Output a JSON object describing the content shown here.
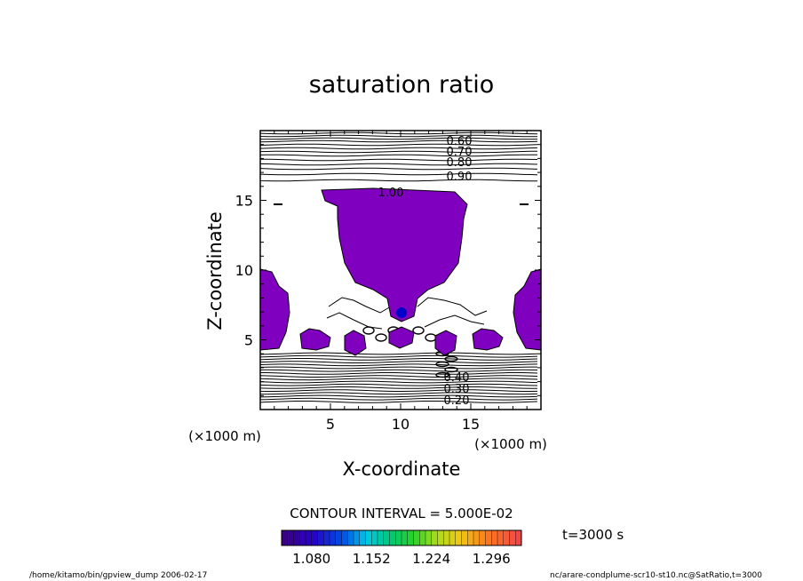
{
  "chart_data": {
    "type": "heatmap",
    "title": "saturation ratio",
    "xlabel": "X-coordinate",
    "ylabel": "Z-coordinate",
    "xunit": "(×1000 m)",
    "yunit": "(×1000 m)",
    "xlim": [
      0,
      20
    ],
    "ylim": [
      0,
      20
    ],
    "xticks": [
      5,
      10,
      15
    ],
    "yticks": [
      5,
      10,
      15
    ],
    "contour_interval_text": "CONTOUR INTERVAL = 5.000E-02",
    "contour_labels_upper": [
      "0.60",
      "0.70",
      "0.80",
      "0.90",
      "1.00"
    ],
    "contour_labels_lower": [
      "0.20",
      "0.30",
      "0.40"
    ],
    "colorbar": {
      "ticks": [
        "1.080",
        "1.152",
        "1.224",
        "1.296"
      ],
      "tick_values": [
        1.08,
        1.152,
        1.224,
        1.296
      ],
      "range": [
        1.044,
        1.332
      ]
    },
    "time_label": "t=3000 s",
    "fill_color": "#8000c0"
  },
  "footer": {
    "left": "/home/kitamo/bin/gpview_dump  2006-02-17",
    "right": "nc/arare-condplume-scr10-st10.nc@SatRatio,t=3000"
  }
}
